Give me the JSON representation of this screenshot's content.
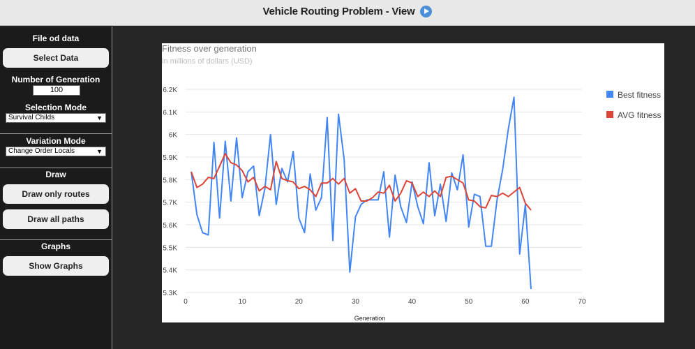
{
  "header": {
    "title": "Vehicle Routing Problem - View",
    "play_icon": "play-circle-icon"
  },
  "sidebar": {
    "file_title": "File od data",
    "select_data": "Select Data",
    "generations_label": "Number of Generation",
    "generations_value": "100",
    "selection_label": "Selection Mode",
    "selection_value": "Survival Childs",
    "variation_label": "Variation Mode",
    "variation_value": "Change Order Locals",
    "draw_title": "Draw",
    "draw_routes": "Draw only routes",
    "draw_paths": "Draw all paths",
    "graphs_title": "Graphs",
    "show_graphs": "Show Graphs"
  },
  "chart_data": {
    "type": "line",
    "title": "Fitness over generation",
    "subtitle": "in millions of dollars (USD)",
    "xlabel": "Generation",
    "ylabel": "",
    "xlim": [
      0,
      70
    ],
    "ylim": [
      5300,
      6200
    ],
    "xticks": [
      "0",
      "10",
      "20",
      "30",
      "40",
      "50",
      "60",
      "70"
    ],
    "yticks": [
      "5.3K",
      "5.4K",
      "5.5K",
      "5.6K",
      "5.7K",
      "5.8K",
      "5.9K",
      "6K",
      "6.1K",
      "6.2K"
    ],
    "grid": true,
    "legend": "right",
    "x": [
      1,
      2,
      3,
      4,
      5,
      6,
      7,
      8,
      9,
      10,
      11,
      12,
      13,
      14,
      15,
      16,
      17,
      18,
      19,
      20,
      21,
      22,
      23,
      24,
      25,
      26,
      27,
      28,
      29,
      30,
      31,
      32,
      33,
      34,
      35,
      36,
      37,
      38,
      39,
      40,
      41,
      42,
      43,
      44,
      45,
      46,
      47,
      48,
      49,
      50,
      51,
      52,
      53,
      54,
      55,
      56,
      57,
      58,
      59,
      60,
      61
    ],
    "series": [
      {
        "name": "Best fitness",
        "color": "#4285f4",
        "values": [
          5835,
          5645,
          5565,
          5555,
          5965,
          5630,
          5970,
          5705,
          5985,
          5720,
          5835,
          5860,
          5640,
          5760,
          6000,
          5690,
          5850,
          5790,
          5925,
          5630,
          5565,
          5825,
          5665,
          5720,
          6075,
          5530,
          6090,
          5890,
          5390,
          5635,
          5690,
          5710,
          5710,
          5710,
          5835,
          5545,
          5820,
          5680,
          5610,
          5790,
          5680,
          5605,
          5875,
          5640,
          5780,
          5615,
          5830,
          5755,
          5910,
          5590,
          5735,
          5725,
          5505,
          5505,
          5710,
          5845,
          6025,
          6165,
          5470,
          5690,
          5315
        ]
      },
      {
        "name": "AVG fitness",
        "color": "#db4437",
        "values": [
          5835,
          5765,
          5780,
          5810,
          5805,
          5860,
          5915,
          5875,
          5865,
          5840,
          5790,
          5810,
          5750,
          5770,
          5755,
          5880,
          5805,
          5795,
          5790,
          5760,
          5770,
          5755,
          5725,
          5785,
          5785,
          5805,
          5780,
          5805,
          5740,
          5760,
          5705,
          5705,
          5720,
          5745,
          5740,
          5775,
          5705,
          5740,
          5795,
          5785,
          5725,
          5745,
          5725,
          5750,
          5725,
          5810,
          5815,
          5800,
          5785,
          5710,
          5705,
          5680,
          5675,
          5730,
          5725,
          5740,
          5725,
          5745,
          5765,
          5695,
          5665
        ]
      }
    ]
  }
}
